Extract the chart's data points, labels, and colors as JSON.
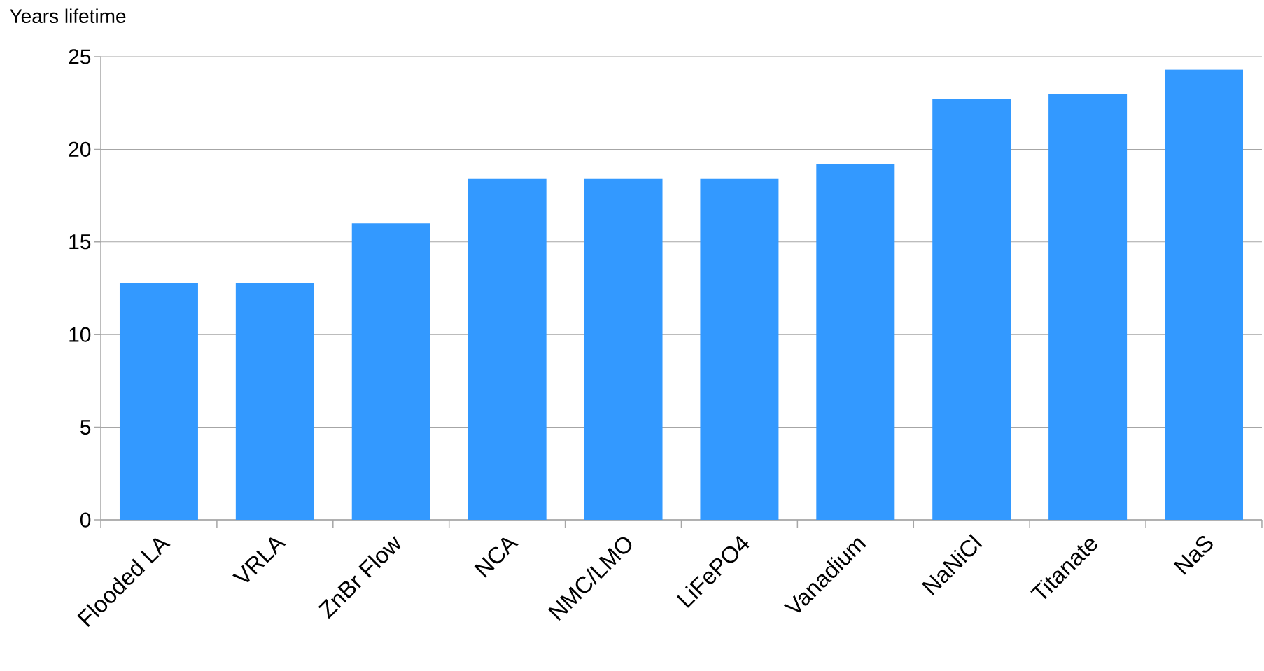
{
  "chart_data": {
    "type": "bar",
    "ylabel": "Years lifetime",
    "categories": [
      "Flooded LA",
      "VRLA",
      "ZnBr Flow",
      "NCA",
      "NMC/LMO",
      "LiFePO4",
      "Vanadium",
      "NaNiCl",
      "Titanate",
      "NaS"
    ],
    "values": [
      12.8,
      12.8,
      16.0,
      18.4,
      18.4,
      18.4,
      19.2,
      22.7,
      23.0,
      24.3
    ],
    "color": "#3399ff",
    "ylim": [
      0,
      25
    ],
    "yticks": [
      0,
      5,
      10,
      15,
      20,
      25
    ],
    "grid": "y"
  }
}
